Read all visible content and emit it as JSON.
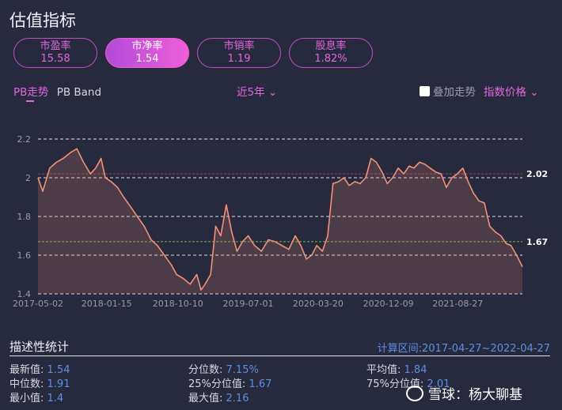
{
  "title": "估值指标",
  "metrics": [
    {
      "label": "市盈率",
      "value": "15.58",
      "active": false
    },
    {
      "label": "市净率",
      "value": "1.54",
      "active": true
    },
    {
      "label": "市销率",
      "value": "1.19",
      "active": false
    },
    {
      "label": "股息率",
      "value": "1.82%",
      "active": false
    }
  ],
  "tabs": {
    "pb_trend": "PB走势",
    "pb_band": "PB Band"
  },
  "range_select": "近5年",
  "overlay": {
    "label": "叠加走势",
    "index_select": "指数价格"
  },
  "stats": {
    "title": "描述性统计",
    "calc_range": "计算区间:2017-04-27~2022-04-27",
    "latest": {
      "label": "最新值:",
      "value": "1.54"
    },
    "median": {
      "label": "中位数:",
      "value": "1.91"
    },
    "min": {
      "label": "最小值:",
      "value": "1.4"
    },
    "percentile": {
      "label": "分位数:",
      "value": "7.15%"
    },
    "p25": {
      "label": "25%分位值:",
      "value": "1.67"
    },
    "max": {
      "label": "最大值:",
      "value": "2.16"
    },
    "mean": {
      "label": "平均值:",
      "value": "1.84"
    },
    "p75": {
      "label": "75%分位值:",
      "value": "2.01"
    }
  },
  "watermark": "雪球：杨大聊基",
  "colors": {
    "accent": "#e266e0",
    "line": "#f4907a",
    "blue": "#5d8fe6",
    "bg": "#262a3c"
  },
  "chart_data": {
    "type": "area",
    "x_ticks": [
      "2017-05-02",
      "2018-01-15",
      "2018-10-10",
      "2019-07-01",
      "2020-03-20",
      "2020-12-09",
      "2021-08-27"
    ],
    "y_ticks": [
      "2.2",
      "2",
      "1.8",
      "1.6",
      "1.4"
    ],
    "ylim": [
      1.4,
      2.2
    ],
    "ref_lines": [
      {
        "value": 2.02,
        "label": "2.02",
        "color": "#b03a48"
      },
      {
        "value": 1.67,
        "label": "1.67",
        "color": "#79b84a"
      }
    ],
    "series": [
      {
        "x": [
          "2017-05-02",
          "2017-05-20",
          "2017-06-15",
          "2017-07-10",
          "2017-08-05",
          "2017-09-01",
          "2017-09-25",
          "2017-10-20",
          "2017-11-15",
          "2017-12-05",
          "2017-12-25",
          "2018-01-10",
          "2018-02-01",
          "2018-02-25",
          "2018-03-20",
          "2018-04-15",
          "2018-05-10",
          "2018-06-05",
          "2018-07-01",
          "2018-07-25",
          "2018-08-20",
          "2018-09-15",
          "2018-10-05",
          "2018-10-30",
          "2018-11-25",
          "2018-12-20",
          "2019-01-05",
          "2019-01-20",
          "2019-02-10",
          "2019-03-01",
          "2019-03-20",
          "2019-04-10",
          "2019-04-30",
          "2019-05-20",
          "2019-06-10",
          "2019-07-01",
          "2019-07-25",
          "2019-08-20",
          "2019-09-15",
          "2019-10-10",
          "2019-11-05",
          "2019-12-01",
          "2019-12-25",
          "2020-01-15",
          "2020-02-05",
          "2020-02-25",
          "2020-03-15",
          "2020-04-05",
          "2020-04-25",
          "2020-05-15",
          "2020-06-05",
          "2020-06-25",
          "2020-07-15",
          "2020-08-05",
          "2020-08-25",
          "2020-09-15",
          "2020-10-05",
          "2020-10-25",
          "2020-11-15",
          "2020-12-05",
          "2020-12-25",
          "2021-01-15",
          "2021-02-05",
          "2021-02-25",
          "2021-03-15",
          "2021-04-05",
          "2021-04-25",
          "2021-05-15",
          "2021-06-05",
          "2021-06-25",
          "2021-07-15",
          "2021-08-05",
          "2021-08-25",
          "2021-09-15",
          "2021-10-05",
          "2021-10-25",
          "2021-11-15",
          "2021-12-05",
          "2021-12-25",
          "2022-01-15",
          "2022-02-05",
          "2022-02-25",
          "2022-03-15",
          "2022-04-05",
          "2022-04-27"
        ],
        "y": [
          2.0,
          1.93,
          2.05,
          2.08,
          2.1,
          2.13,
          2.15,
          2.08,
          2.02,
          2.05,
          2.1,
          2.0,
          1.98,
          1.95,
          1.9,
          1.85,
          1.8,
          1.75,
          1.68,
          1.65,
          1.6,
          1.55,
          1.5,
          1.48,
          1.45,
          1.5,
          1.42,
          1.45,
          1.5,
          1.75,
          1.7,
          1.86,
          1.72,
          1.62,
          1.67,
          1.7,
          1.65,
          1.62,
          1.68,
          1.67,
          1.65,
          1.63,
          1.7,
          1.65,
          1.58,
          1.6,
          1.65,
          1.62,
          1.7,
          1.97,
          1.98,
          2.0,
          1.96,
          1.98,
          1.97,
          2.0,
          2.1,
          2.08,
          2.03,
          1.97,
          2.0,
          2.05,
          2.02,
          2.06,
          2.05,
          2.08,
          2.07,
          2.05,
          2.03,
          2.02,
          1.95,
          2.0,
          2.02,
          2.05,
          1.98,
          1.92,
          1.88,
          1.87,
          1.75,
          1.72,
          1.7,
          1.66,
          1.65,
          1.6,
          1.54
        ]
      }
    ]
  }
}
